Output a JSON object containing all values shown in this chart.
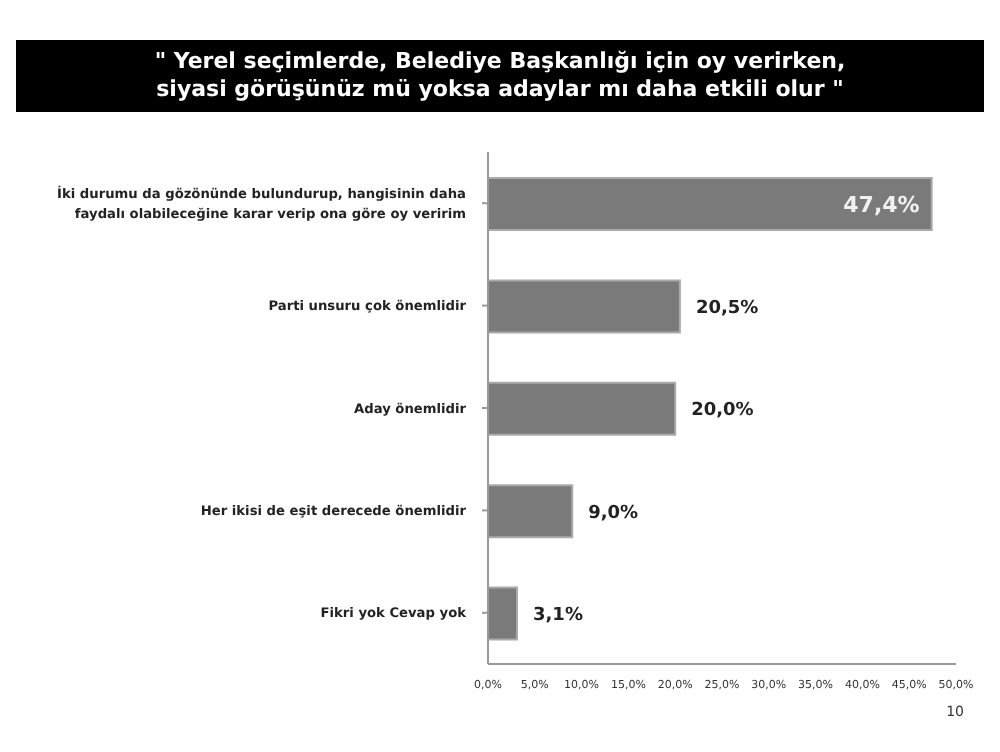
{
  "chart_data": {
    "type": "bar",
    "orientation": "horizontal",
    "title": "\" Yerel seçimlerde, Belediye Başkanlığı için oy verirken,\nsiyasi görüşünüz mü yoksa adaylar mı daha etkili olur \"",
    "categories": [
      "İki durumu da gözönünde bulundurup, hangisinin daha faydalı olabileceğine karar verip ona göre oy veririm",
      "Parti unsuru çok önemlidir",
      "Aday önemlidir",
      "Her ikisi de eşit derecede önemlidir",
      "Fikri yok Cevap yok"
    ],
    "values": [
      47.4,
      20.5,
      20.0,
      9.0,
      3.1
    ],
    "value_labels": [
      "47,4%",
      "20,5%",
      "20,0%",
      "9,0%",
      "3,1%"
    ],
    "color": "#7a7a7a",
    "xlim": [
      0,
      50
    ],
    "xticks": [
      {
        "value": 0,
        "label": "0,0%"
      },
      {
        "value": 5,
        "label": "5,0%"
      },
      {
        "value": 10,
        "label": "10,0%"
      },
      {
        "value": 15,
        "label": "15,0%"
      },
      {
        "value": 20,
        "label": "20,0%"
      },
      {
        "value": 25,
        "label": "25,0%"
      },
      {
        "value": 30,
        "label": "30,0%"
      },
      {
        "value": 35,
        "label": "35,0%"
      },
      {
        "value": 40,
        "label": "40,0%"
      },
      {
        "value": 45,
        "label": "45,0%"
      },
      {
        "value": 50,
        "label": "50,0%"
      }
    ],
    "grid": false,
    "legend": false,
    "annotations": [
      "10"
    ]
  }
}
